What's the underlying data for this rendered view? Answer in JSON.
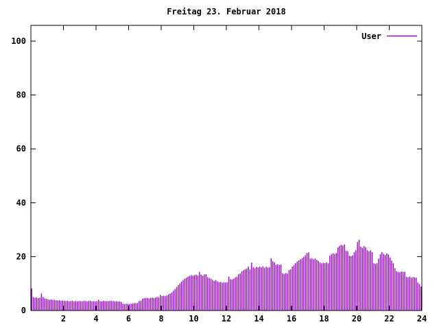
{
  "page": {
    "background": "#ffffff",
    "text_color": "#000000"
  },
  "chart_data": {
    "type": "bar",
    "style": "impulses",
    "title": "Freitag 23. Februar 2018",
    "xlabel": "",
    "ylabel": "",
    "xlim": [
      0,
      24
    ],
    "ylim": [
      0,
      106
    ],
    "x_ticks": [
      2,
      4,
      6,
      8,
      10,
      12,
      14,
      16,
      18,
      20,
      22,
      24
    ],
    "y_ticks": [
      0,
      20,
      40,
      60,
      80,
      100
    ],
    "grid": false,
    "legend_position": "top-right-inside",
    "sample_interval_hours": 0.1,
    "axis_color": "#000000",
    "series": [
      {
        "name": "User",
        "color": "#9900cc",
        "values": [
          8.2,
          5.0,
          4.7,
          4.9,
          4.6,
          4.8,
          6.3,
          5.0,
          4.6,
          4.3,
          4.2,
          4.0,
          4.1,
          3.9,
          4.0,
          3.8,
          3.7,
          3.8,
          3.6,
          3.7,
          3.6,
          3.5,
          3.6,
          3.4,
          3.5,
          3.6,
          3.4,
          3.5,
          3.4,
          3.5,
          3.5,
          3.4,
          3.6,
          3.5,
          3.4,
          3.5,
          3.6,
          3.4,
          3.5,
          3.4,
          3.5,
          4.0,
          3.5,
          3.4,
          3.6,
          3.5,
          3.4,
          3.5,
          3.6,
          3.5,
          3.5,
          3.4,
          3.5,
          3.3,
          3.4,
          3.2,
          2.5,
          2.4,
          2.5,
          2.4,
          2.4,
          2.5,
          2.6,
          2.8,
          2.7,
          2.8,
          3.5,
          3.6,
          4.4,
          4.6,
          4.6,
          4.7,
          4.5,
          4.7,
          4.8,
          4.6,
          4.8,
          5.0,
          4.9,
          5.8,
          5.4,
          5.5,
          5.3,
          5.6,
          6.0,
          6.3,
          6.7,
          7.3,
          8.0,
          8.7,
          9.4,
          10.1,
          10.7,
          11.3,
          11.8,
          12.2,
          12.6,
          12.9,
          13.1,
          12.9,
          13.1,
          13.3,
          13.0,
          14.3,
          13.3,
          12.9,
          13.4,
          13.5,
          12.4,
          12.0,
          11.8,
          11.4,
          11.0,
          11.3,
          10.8,
          10.5,
          10.6,
          10.3,
          10.5,
          10.4,
          10.5,
          12.6,
          11.6,
          11.5,
          11.8,
          12.3,
          12.6,
          13.5,
          13.8,
          14.5,
          14.9,
          15.3,
          15.6,
          16.3,
          15.2,
          17.8,
          16.0,
          15.7,
          16.2,
          16.0,
          16.3,
          16.0,
          16.4,
          15.8,
          16.2,
          15.9,
          16.1,
          19.4,
          18.3,
          17.9,
          17.0,
          17.2,
          16.9,
          17.1,
          13.8,
          13.6,
          13.9,
          13.7,
          15.0,
          15.3,
          16.3,
          16.9,
          17.6,
          18.2,
          18.6,
          19.0,
          19.4,
          19.9,
          20.5,
          21.4,
          21.6,
          19.2,
          19.4,
          19.0,
          19.3,
          18.8,
          18.4,
          17.8,
          17.5,
          17.7,
          17.6,
          17.9,
          17.5,
          20.4,
          20.9,
          21.3,
          21.0,
          21.3,
          23.4,
          24.0,
          24.4,
          24.1,
          24.5,
          22.2,
          22.0,
          20.3,
          20.1,
          20.5,
          21.7,
          22.4,
          25.4,
          26.3,
          23.7,
          23.3,
          23.9,
          23.5,
          22.4,
          22.0,
          22.3,
          21.6,
          17.5,
          17.3,
          17.6,
          19.3,
          20.9,
          21.7,
          21.0,
          20.6,
          21.2,
          20.8,
          19.7,
          18.5,
          17.5,
          15.7,
          14.6,
          14.3,
          14.2,
          14.5,
          14.3,
          14.4,
          12.5,
          12.3,
          12.6,
          12.2,
          12.4,
          12.3,
          12.2,
          10.4,
          9.8,
          8.9
        ]
      }
    ]
  }
}
